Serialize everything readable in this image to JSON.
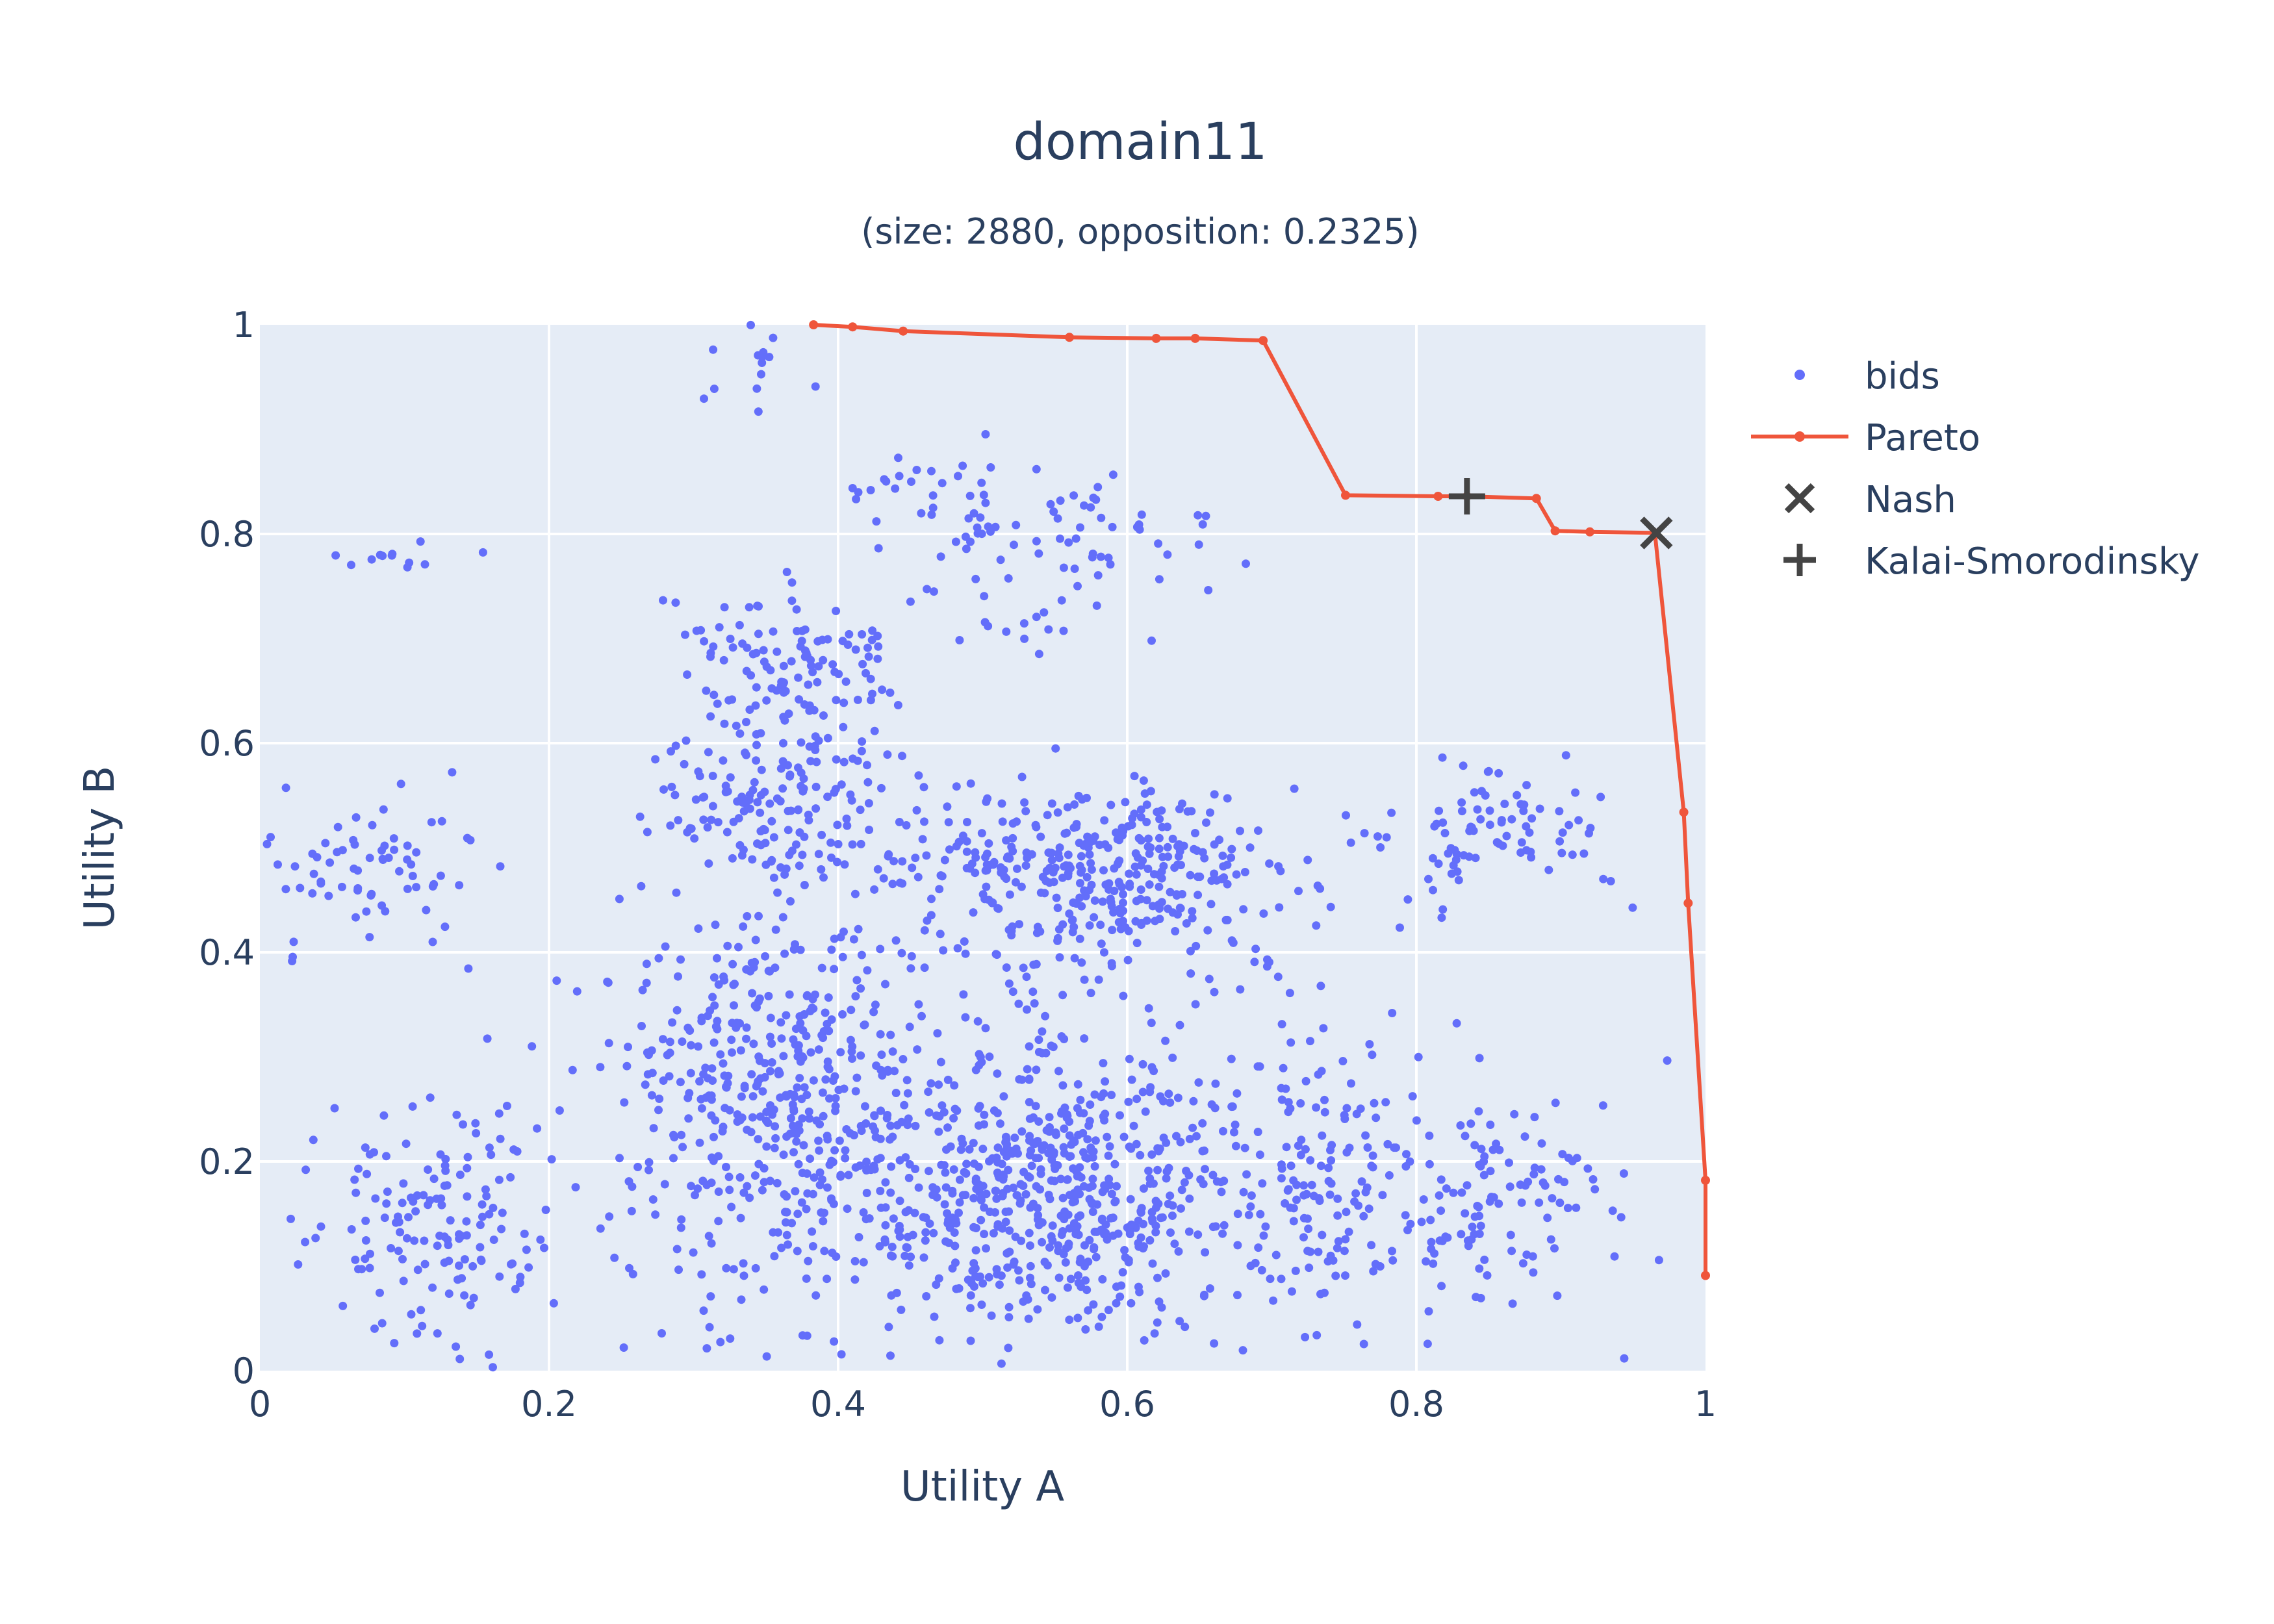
{
  "chart_data": {
    "type": "scatter",
    "title": "domain11",
    "subtitle": "(size: 2880, opposition: 0.2325)",
    "xlabel": "Utility A",
    "ylabel": "Utility B",
    "xlim": [
      0,
      1
    ],
    "ylim": [
      0,
      1
    ],
    "x_ticks": [
      "0",
      "0.2",
      "0.4",
      "0.6",
      "0.8",
      "1"
    ],
    "y_ticks": [
      "0",
      "0.2",
      "0.4",
      "0.6",
      "0.8",
      "1"
    ],
    "grid": true,
    "legend_placement": "right",
    "colors": {
      "bids": "#636efa",
      "pareto": "#ef553b",
      "markers": "#444444",
      "plot_bg": "#e5ecf6",
      "grid": "#ffffff",
      "text": "#2a3f5f"
    },
    "series": [
      {
        "name": "bids",
        "mode": "markers",
        "clusters": [
          {
            "cx": 0.08,
            "cy": 0.48,
            "sx": 0.05,
            "sy": 0.05,
            "n": 70
          },
          {
            "cx": 0.12,
            "cy": 0.14,
            "sx": 0.06,
            "sy": 0.08,
            "n": 150
          },
          {
            "cx": 0.36,
            "cy": 0.25,
            "sx": 0.07,
            "sy": 0.12,
            "n": 380
          },
          {
            "cx": 0.36,
            "cy": 0.55,
            "sx": 0.06,
            "sy": 0.06,
            "n": 170
          },
          {
            "cx": 0.37,
            "cy": 0.68,
            "sx": 0.05,
            "sy": 0.05,
            "n": 110
          },
          {
            "cx": 0.55,
            "cy": 0.18,
            "sx": 0.09,
            "sy": 0.09,
            "n": 560
          },
          {
            "cx": 0.58,
            "cy": 0.48,
            "sx": 0.09,
            "sy": 0.06,
            "n": 360
          },
          {
            "cx": 0.55,
            "cy": 0.78,
            "sx": 0.08,
            "sy": 0.06,
            "n": 90
          },
          {
            "cx": 0.73,
            "cy": 0.18,
            "sx": 0.04,
            "sy": 0.09,
            "n": 110
          },
          {
            "cx": 0.85,
            "cy": 0.17,
            "sx": 0.06,
            "sy": 0.07,
            "n": 130
          },
          {
            "cx": 0.85,
            "cy": 0.52,
            "sx": 0.06,
            "sy": 0.05,
            "n": 90
          },
          {
            "cx": 0.12,
            "cy": 0.78,
            "sx": 0.05,
            "sy": 0.01,
            "n": 12
          },
          {
            "cx": 0.33,
            "cy": 0.96,
            "sx": 0.04,
            "sy": 0.03,
            "n": 14
          },
          {
            "cx": 0.45,
            "cy": 0.85,
            "sx": 0.05,
            "sy": 0.02,
            "n": 18
          },
          {
            "cx": 0.5,
            "cy": 0.1,
            "sx": 0.25,
            "sy": 0.08,
            "n": 120
          },
          {
            "cx": 0.5,
            "cy": 0.35,
            "sx": 0.22,
            "sy": 0.08,
            "n": 140
          }
        ]
      },
      {
        "name": "Pareto",
        "mode": "lines+markers",
        "x": [
          0.383,
          0.41,
          0.445,
          0.56,
          0.62,
          0.647,
          0.694,
          0.751,
          0.815,
          0.835,
          0.883,
          0.896,
          0.92,
          0.965,
          0.985,
          0.988,
          1.0,
          1.0
        ],
        "y": [
          1.0,
          0.998,
          0.994,
          0.988,
          0.987,
          0.987,
          0.985,
          0.837,
          0.836,
          0.836,
          0.834,
          0.803,
          0.802,
          0.801,
          0.534,
          0.447,
          0.182,
          0.091
        ]
      },
      {
        "name": "Nash",
        "mode": "markers",
        "symbol": "x",
        "x": [
          0.966
        ],
        "y": [
          0.801
        ]
      },
      {
        "name": "Kalai-Smorodinsky",
        "mode": "markers",
        "symbol": "cross",
        "x": [
          0.835
        ],
        "y": [
          0.836
        ]
      }
    ]
  }
}
